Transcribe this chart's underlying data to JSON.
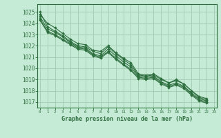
{
  "background_color": "#c5ead5",
  "grid_color": "#a0ccb0",
  "line_color": "#2d6e3e",
  "title": "Graphe pression niveau de la mer (hPa)",
  "xlim": [
    -0.3,
    23.3
  ],
  "ylim": [
    1016.5,
    1025.7
  ],
  "yticks": [
    1017,
    1018,
    1019,
    1020,
    1021,
    1022,
    1023,
    1024,
    1025
  ],
  "xticks": [
    0,
    1,
    2,
    3,
    4,
    5,
    6,
    7,
    8,
    9,
    10,
    11,
    12,
    13,
    14,
    15,
    16,
    17,
    18,
    19,
    20,
    21,
    22,
    23
  ],
  "series": [
    [
      1024.8,
      1024.0,
      1023.6,
      1023.1,
      1022.6,
      1022.2,
      1022.1,
      1021.6,
      1021.5,
      1022.0,
      1021.4,
      1020.9,
      1020.5,
      1019.5,
      1019.4,
      1019.5,
      1019.1,
      1018.7,
      1019.0,
      1018.6,
      1018.0,
      1017.4,
      1017.2
    ],
    [
      1024.6,
      1023.5,
      1023.2,
      1022.8,
      1022.3,
      1021.9,
      1021.8,
      1021.3,
      1021.1,
      1021.7,
      1021.1,
      1020.6,
      1020.1,
      1019.3,
      1019.2,
      1019.3,
      1018.8,
      1018.5,
      1018.7,
      1018.4,
      1017.8,
      1017.3,
      1017.1
    ],
    [
      1024.4,
      1023.3,
      1023.0,
      1022.6,
      1022.2,
      1021.8,
      1021.7,
      1021.2,
      1021.0,
      1021.5,
      1020.9,
      1020.4,
      1019.9,
      1019.2,
      1019.1,
      1019.2,
      1018.7,
      1018.4,
      1018.6,
      1018.3,
      1017.7,
      1017.2,
      1017.0
    ],
    [
      1024.3,
      1023.2,
      1022.9,
      1022.5,
      1022.1,
      1021.7,
      1021.6,
      1021.1,
      1020.9,
      1021.4,
      1020.8,
      1020.3,
      1019.8,
      1019.1,
      1019.0,
      1019.1,
      1018.6,
      1018.3,
      1018.5,
      1018.2,
      1017.6,
      1017.1,
      1016.9
    ],
    [
      1025.0,
      1023.7,
      1023.3,
      1022.9,
      1022.4,
      1022.0,
      1021.9,
      1021.5,
      1021.3,
      1021.9,
      1021.3,
      1020.8,
      1020.3,
      1019.4,
      1019.3,
      1019.4,
      1019.0,
      1018.7,
      1018.9,
      1018.6,
      1018.0,
      1017.5,
      1017.3
    ]
  ]
}
